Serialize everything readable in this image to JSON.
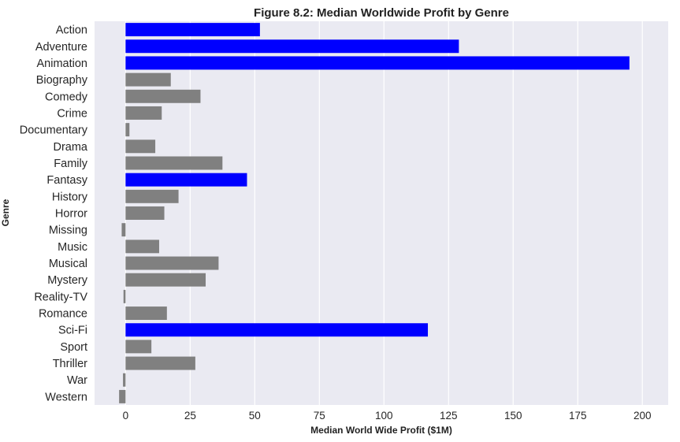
{
  "chart_data": {
    "type": "bar",
    "orientation": "horizontal",
    "title": "Figure 8.2: Median Worldwide Profit by Genre",
    "xlabel": "Median World Wide Profit ($1M)",
    "ylabel": "Genre",
    "xlim": [
      -12,
      210
    ],
    "xticks": [
      0,
      25,
      50,
      75,
      100,
      125,
      150,
      175,
      200
    ],
    "grid": true,
    "legend": "none",
    "colors": {
      "highlight": "#0000ff",
      "default": "#808080",
      "plot_background": "#eaeaf2",
      "grid": "#ffffff"
    },
    "categories": [
      "Action",
      "Adventure",
      "Animation",
      "Biography",
      "Comedy",
      "Crime",
      "Documentary",
      "Drama",
      "Family",
      "Fantasy",
      "History",
      "Horror",
      "Missing",
      "Music",
      "Musical",
      "Mystery",
      "Reality-TV",
      "Romance",
      "Sci-Fi",
      "Sport",
      "Thriller",
      "War",
      "Western"
    ],
    "values": [
      52,
      129,
      195,
      17.5,
      29,
      14,
      1.5,
      11.5,
      37.5,
      47,
      20.5,
      15,
      -1.5,
      13,
      36,
      31,
      -0.8,
      16,
      117,
      10,
      27,
      -1,
      -2.5
    ],
    "highlighted": [
      "Action",
      "Adventure",
      "Animation",
      "Fantasy",
      "Sci-Fi"
    ]
  }
}
